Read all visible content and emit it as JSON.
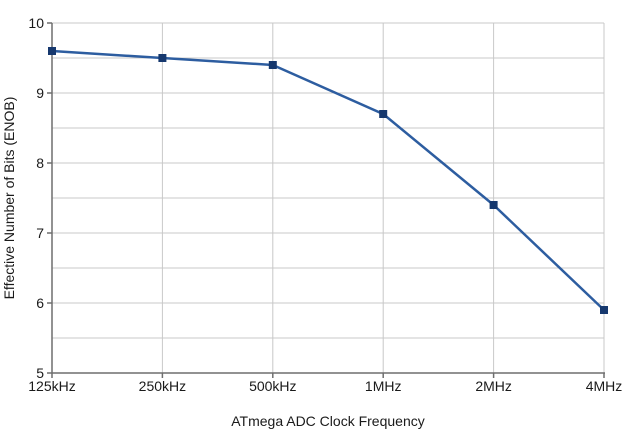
{
  "chart_data": {
    "type": "line",
    "categories": [
      "125kHz",
      "250kHz",
      "500kHz",
      "1MHz",
      "2MHz",
      "4MHz"
    ],
    "values": [
      9.6,
      9.5,
      9.4,
      8.7,
      7.4,
      5.9
    ],
    "series_name": "ENOB",
    "title": "",
    "xlabel": "ATmega ADC Clock Frequency",
    "ylabel": "Effective Number of Bits (ENOB)",
    "ylim": [
      5,
      10
    ],
    "y_major_ticks": [
      5,
      6,
      7,
      8,
      9,
      10
    ],
    "y_minor_step": 0.5,
    "grid": true,
    "legend_position": "none",
    "marker_shape": "square",
    "colors": {
      "line": "#2d5da0",
      "marker": "#16386e",
      "gridline": "#c8c8c8",
      "axis": "#6e6e6e",
      "text": "#1a1a1a"
    }
  }
}
